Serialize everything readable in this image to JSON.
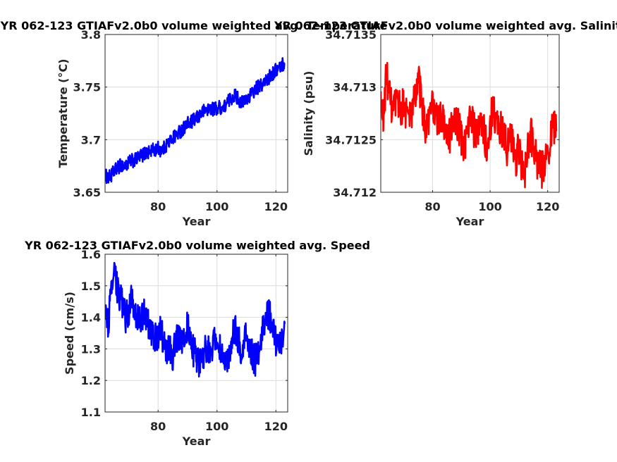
{
  "chart_data": [
    {
      "type": "line",
      "title": "YR 062-123 GTIAFv2.0b0 volume weighted avg. Temperature",
      "xlabel": "Year",
      "ylabel": "Temperature (°C)",
      "xlim": [
        62,
        124
      ],
      "ylim": [
        3.65,
        3.8
      ],
      "xticks": [
        80,
        100,
        120
      ],
      "xtick_labels": [
        "80",
        "100",
        "120"
      ],
      "yticks": [
        3.65,
        3.7,
        3.75,
        3.8
      ],
      "ytick_labels": [
        "3.65",
        "3.7",
        "3.75",
        "3.8"
      ],
      "grid": true,
      "color": "#0000ff",
      "series": [
        {
          "x": [
            62,
            63,
            64,
            65,
            66,
            67,
            68,
            69,
            70,
            71,
            72,
            73,
            74,
            75,
            76,
            77,
            78,
            79,
            80,
            81,
            82,
            83,
            84,
            85,
            86,
            87,
            88,
            89,
            90,
            91,
            92,
            93,
            94,
            95,
            96,
            97,
            98,
            99,
            100,
            101,
            102,
            103,
            104,
            105,
            106,
            107,
            108,
            109,
            110,
            111,
            112,
            113,
            114,
            115,
            116,
            117,
            118,
            119,
            120,
            121,
            122,
            123
          ],
          "values": [
            3.666,
            3.664,
            3.665,
            3.67,
            3.672,
            3.675,
            3.676,
            3.675,
            3.678,
            3.68,
            3.68,
            3.682,
            3.684,
            3.686,
            3.688,
            3.688,
            3.69,
            3.69,
            3.692,
            3.69,
            3.692,
            3.696,
            3.698,
            3.702,
            3.704,
            3.707,
            3.709,
            3.712,
            3.715,
            3.716,
            3.718,
            3.72,
            3.723,
            3.726,
            3.728,
            3.729,
            3.73,
            3.729,
            3.73,
            3.731,
            3.73,
            3.733,
            3.737,
            3.74,
            3.742,
            3.74,
            3.736,
            3.735,
            3.738,
            3.742,
            3.744,
            3.748,
            3.75,
            3.752,
            3.754,
            3.757,
            3.76,
            3.763,
            3.766,
            3.768,
            3.771,
            3.773
          ]
        }
      ]
    },
    {
      "type": "line",
      "title": "YR 062-123 GTIAFv2.0b0 volume weighted avg. Salinity",
      "xlabel": "Year",
      "ylabel": "Salinity (psu)",
      "xlim": [
        62,
        124
      ],
      "ylim": [
        34.712,
        34.7135
      ],
      "xticks": [
        80,
        100,
        120
      ],
      "xtick_labels": [
        "80",
        "100",
        "120"
      ],
      "yticks": [
        34.712,
        34.7125,
        34.713,
        34.7135
      ],
      "ytick_labels": [
        "34.712",
        "34.7125",
        "34.713",
        "34.7135"
      ],
      "grid": true,
      "color": "#ff0000",
      "series": [
        {
          "x": [
            62,
            63,
            64,
            65,
            66,
            67,
            68,
            69,
            70,
            71,
            72,
            73,
            74,
            75,
            76,
            77,
            78,
            79,
            80,
            81,
            82,
            83,
            84,
            85,
            86,
            87,
            88,
            89,
            90,
            91,
            92,
            93,
            94,
            95,
            96,
            97,
            98,
            99,
            100,
            101,
            102,
            103,
            104,
            105,
            106,
            107,
            108,
            109,
            110,
            111,
            112,
            113,
            114,
            115,
            116,
            117,
            118,
            119,
            120,
            121,
            122,
            123
          ],
          "values": [
            34.71282,
            34.7127,
            34.71315,
            34.7129,
            34.71278,
            34.7128,
            34.71286,
            34.71279,
            34.71285,
            34.71275,
            34.7127,
            34.71278,
            34.71292,
            34.71308,
            34.7129,
            34.7127,
            34.71258,
            34.7127,
            34.71282,
            34.71275,
            34.71265,
            34.71272,
            34.71268,
            34.71258,
            34.71252,
            34.71265,
            34.7127,
            34.71262,
            34.71252,
            34.7124,
            34.71262,
            34.71278,
            34.71265,
            34.71252,
            34.71258,
            34.71262,
            34.71255,
            34.71245,
            34.71262,
            34.71282,
            34.7127,
            34.71255,
            34.71262,
            34.7125,
            34.7124,
            34.71255,
            34.71245,
            34.71232,
            34.7124,
            34.71228,
            34.71218,
            34.7124,
            34.71255,
            34.71245,
            34.7123,
            34.71225,
            34.71222,
            34.71232,
            34.7124,
            34.7125,
            34.71262,
            34.71258
          ]
        }
      ]
    },
    {
      "type": "line",
      "title": "YR 062-123 GTIAFv2.0b0 volume weighted avg. Speed",
      "xlabel": "Year",
      "ylabel": "Speed (cm/s)",
      "xlim": [
        62,
        124
      ],
      "ylim": [
        1.1,
        1.6
      ],
      "xticks": [
        80,
        100,
        120
      ],
      "xtick_labels": [
        "80",
        "100",
        "120"
      ],
      "yticks": [
        1.1,
        1.2,
        1.3,
        1.4,
        1.5,
        1.6
      ],
      "ytick_labels": [
        "1.1",
        "1.2",
        "1.3",
        "1.4",
        "1.5",
        "1.6"
      ],
      "grid": true,
      "color": "#0000ff",
      "series": [
        {
          "x": [
            62,
            63,
            64,
            65,
            66,
            67,
            68,
            69,
            70,
            71,
            72,
            73,
            74,
            75,
            76,
            77,
            78,
            79,
            80,
            81,
            82,
            83,
            84,
            85,
            86,
            87,
            88,
            89,
            90,
            91,
            92,
            93,
            94,
            95,
            96,
            97,
            98,
            99,
            100,
            101,
            102,
            103,
            104,
            105,
            106,
            107,
            108,
            109,
            110,
            111,
            112,
            113,
            114,
            115,
            116,
            117,
            118,
            119,
            120,
            121,
            122,
            123
          ],
          "values": [
            1.42,
            1.38,
            1.46,
            1.54,
            1.5,
            1.46,
            1.44,
            1.4,
            1.42,
            1.46,
            1.43,
            1.4,
            1.38,
            1.42,
            1.4,
            1.37,
            1.34,
            1.33,
            1.35,
            1.36,
            1.32,
            1.3,
            1.31,
            1.28,
            1.32,
            1.34,
            1.33,
            1.36,
            1.37,
            1.33,
            1.29,
            1.28,
            1.25,
            1.27,
            1.3,
            1.31,
            1.28,
            1.32,
            1.35,
            1.3,
            1.26,
            1.24,
            1.28,
            1.33,
            1.36,
            1.34,
            1.3,
            1.32,
            1.34,
            1.31,
            1.28,
            1.26,
            1.29,
            1.33,
            1.38,
            1.42,
            1.4,
            1.36,
            1.32,
            1.3,
            1.34,
            1.38
          ]
        }
      ]
    }
  ]
}
